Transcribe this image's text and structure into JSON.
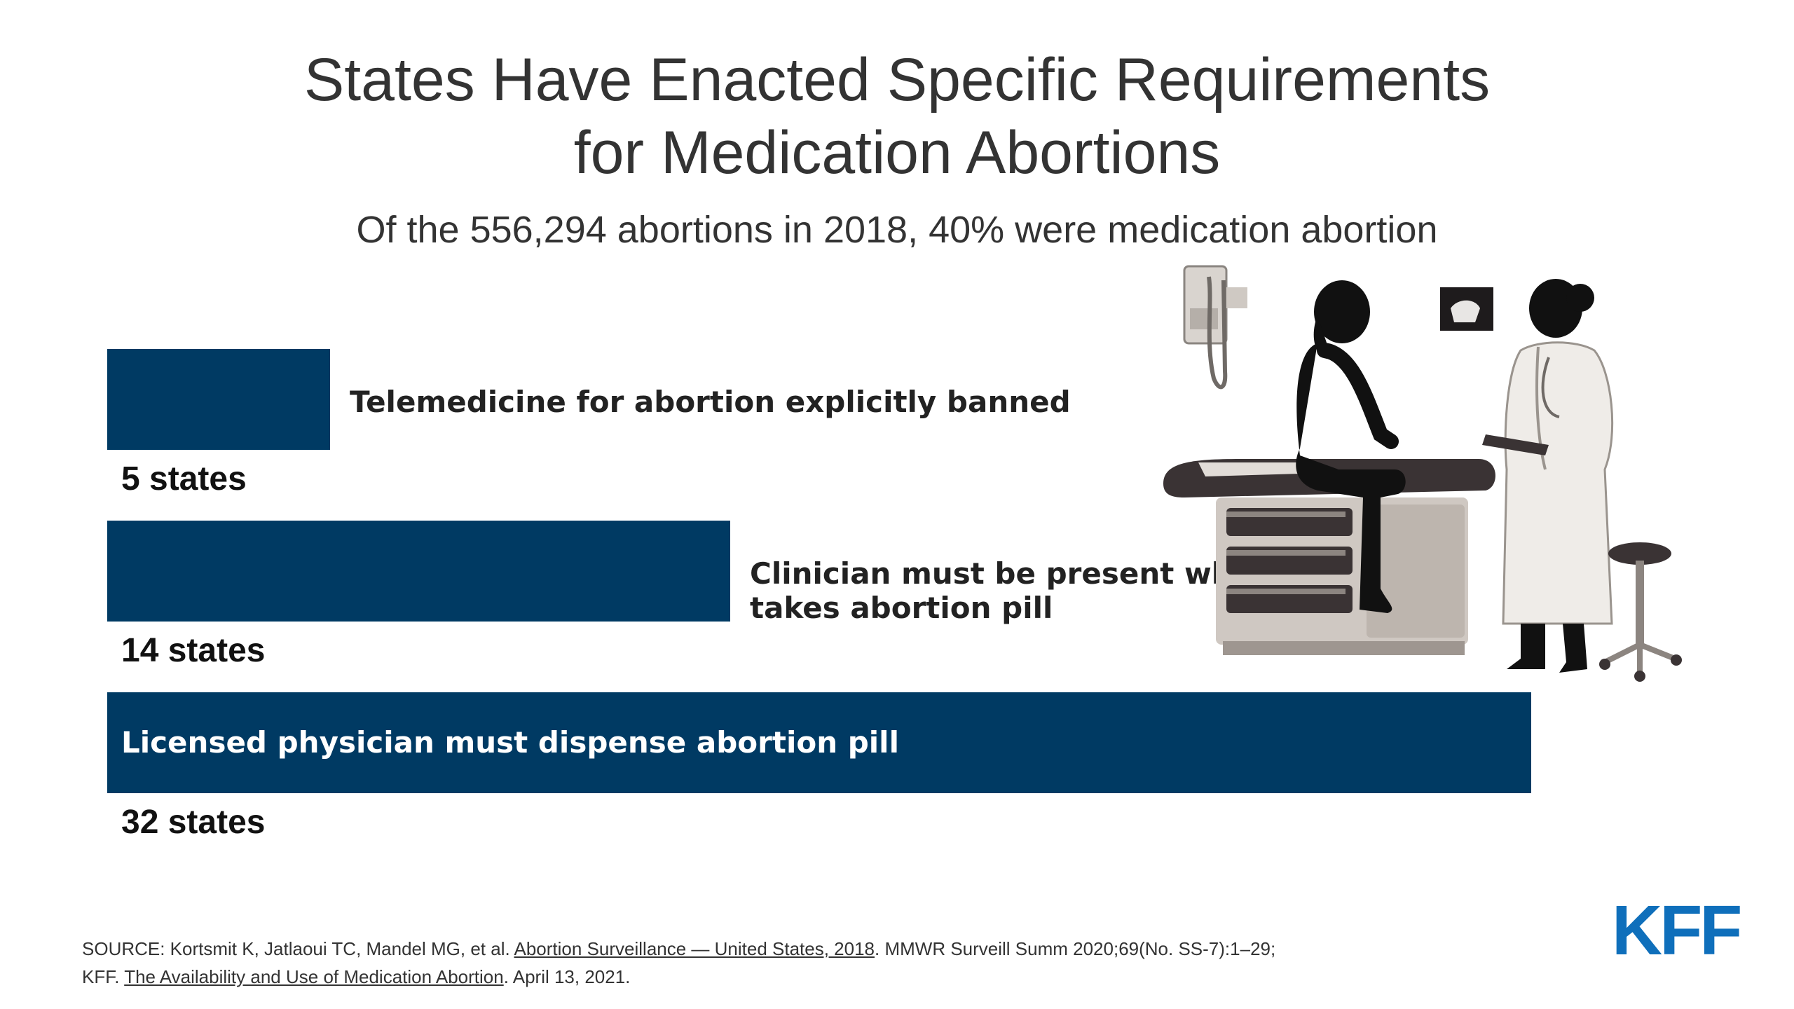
{
  "colors": {
    "bar": "#003a63",
    "logo": "#0f6fbb"
  },
  "chart_data": {
    "type": "bar",
    "orientation": "horizontal",
    "title": "States Have Enacted Specific Requirements for Medication Abortions",
    "subtitle": "Of the 556,294 abortions in 2018, 40% were medication abortion",
    "categories": [
      "Telemedicine for abortion explicitly banned",
      "Clinician must be present while patients takes abortion pill",
      "Licensed physician must dispense abortion pill"
    ],
    "values": [
      5,
      14,
      32
    ],
    "value_labels": [
      "5 states",
      "14 states",
      "32 states"
    ],
    "xlim": [
      0,
      32
    ]
  },
  "title_lines": [
    "States Have Enacted Specific Requirements",
    "for Medication Abortions"
  ],
  "label_lines": [
    [
      "Telemedicine for abortion explicitly banned"
    ],
    [
      "Clinician must be present while patients",
      "takes abortion pill"
    ],
    [
      "Licensed physician must dispense abortion pill"
    ]
  ],
  "source": {
    "prefix": "SOURCE: Kortsmit K, Jatlaoui TC, Mandel MG, et al. ",
    "link1": "Abortion Surveillance — United States, 2018",
    "middle": ". MMWR Surveill Summ 2020;69(No. SS-7):1–29;",
    "line2_prefix": "KFF. ",
    "link2": "The Availability and Use of Medication Abortion",
    "suffix": ". April 13, 2021."
  },
  "logo_text": "KFF",
  "illustration_icon": "doctor-patient-exam-room-illustration"
}
